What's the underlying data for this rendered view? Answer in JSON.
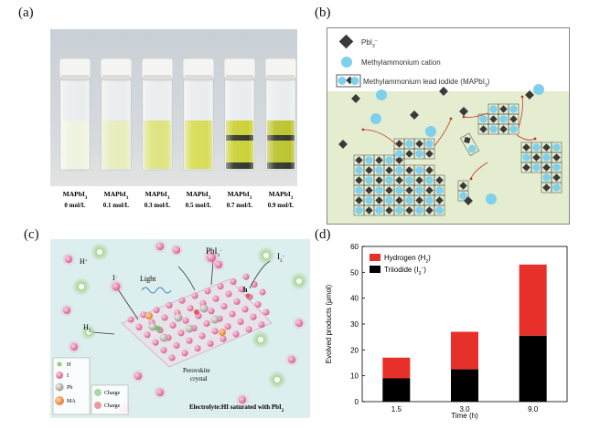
{
  "panels": {
    "a": {
      "label": "(a)",
      "vials": [
        {
          "name": "MAPbI",
          "sub": "3",
          "conc": "0 mol/L",
          "color": "#eef3df"
        },
        {
          "name": "MAPbI",
          "sub": "3",
          "conc": "0.1 mol/L",
          "color": "#e6ecb8"
        },
        {
          "name": "MAPbI",
          "sub": "3",
          "conc": "0.3 mol/L",
          "color": "#dbe27a"
        },
        {
          "name": "MAPbI",
          "sub": "3",
          "conc": "0.5 mol/L",
          "color": "#d5db4f"
        },
        {
          "name": "MAPbI",
          "sub": "3",
          "conc": "0.7 mol/L",
          "color": "#c8cf2e"
        },
        {
          "name": "MAPbI",
          "sub": "3",
          "conc": "0.9 mol/L",
          "color": "#b8c224"
        }
      ]
    },
    "b": {
      "label": "(b)",
      "legend": [
        {
          "kind": "diamond",
          "text": "PbI",
          "sub": "3",
          "sup": "–"
        },
        {
          "kind": "circle",
          "text": "Methylammonium cation"
        },
        {
          "kind": "cell",
          "text": "Methylammonium lead iodide (MAPbI",
          "sub": "3",
          "tail": ")"
        }
      ]
    },
    "c": {
      "label": "(c)",
      "labels": {
        "hplus": "H",
        "iminus": "I",
        "light": "Light",
        "pbi3": "PbI",
        "i3": "I",
        "h2": "H",
        "hole": "h",
        "crystal1": "Perovskite",
        "crystal2": "crystal",
        "electrolyte": "Electrolyte:HI saturated with PbI"
      },
      "legend": [
        {
          "kind": "H",
          "text": "H",
          "color": "#9acb7a"
        },
        {
          "kind": "I",
          "text": "I",
          "color": "#e98fb8"
        },
        {
          "kind": "Pb",
          "text": "Pb",
          "color": "#c9c2bf"
        },
        {
          "kind": "MA",
          "text": "MA",
          "color": "#f3a060"
        }
      ],
      "legend2": [
        {
          "text": "Charge",
          "color": "#6fbf6f"
        },
        {
          "text": "Charge",
          "color": "#e05b5b"
        }
      ]
    },
    "d": {
      "label": "(d)"
    }
  },
  "chart_data": {
    "type": "bar",
    "stacked": true,
    "categories": [
      "1.5",
      "3.0",
      "9.0"
    ],
    "series": [
      {
        "name": "Triiodide (I₃⁻)",
        "values": [
          9,
          12.5,
          25.5
        ],
        "color": "#000000"
      },
      {
        "name": "Hydrogen (H₂)",
        "values": [
          8,
          14.5,
          27.5
        ],
        "color": "#e8302a"
      }
    ],
    "xlabel": "Time (h)",
    "ylabel": "Evolved products (μmol)",
    "ylim": [
      0,
      60
    ],
    "yticks": [
      0,
      10,
      20,
      30,
      40,
      50,
      60
    ],
    "legend_position": "top-left",
    "legend_labels": [
      "Hydrogen (H",
      "Triiodide (I"
    ],
    "legend_subs": [
      "2",
      "3"
    ],
    "legend_sup": [
      "",
      "−"
    ]
  }
}
